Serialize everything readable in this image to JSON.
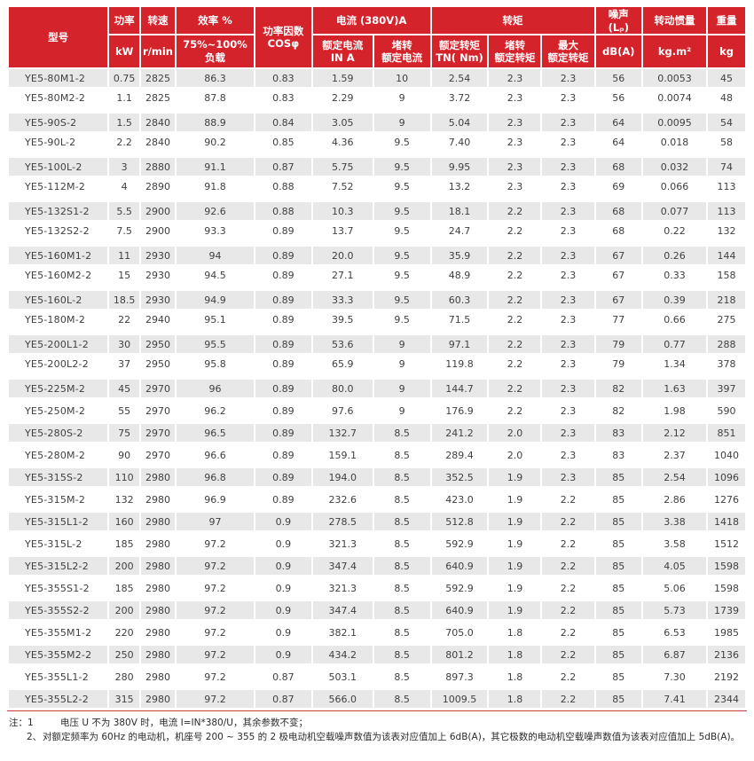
{
  "page": {
    "accent_red": "#d5232b",
    "row_gray": "#e8e8e8"
  },
  "table": {
    "header": {
      "model": "型号",
      "power_title": "功率",
      "power_unit": "kW",
      "speed_title": "转速",
      "speed_unit": "r/min",
      "eff_title": "效率 %",
      "eff_unit": "75%~100% 负载",
      "cos": "功率因数\nCOSφ",
      "current_group": "电流 (380V)A",
      "current_rated": "额定电流\nIN A",
      "current_locked": "堵转\n额定电流",
      "torque_group": "转矩",
      "torque_rated": "额定转矩\nTN( Nm)",
      "torque_locked": "堵转\n额定转矩",
      "torque_max": "最大\n额定转矩",
      "noise_title": "噪声 (Lₚ)",
      "noise_unit": "dB(A)",
      "inertia_title": "转动惯量",
      "inertia_unit": "kg.m²",
      "weight_title": "重量",
      "weight_unit": "kg"
    },
    "rows": [
      [
        "YE5-80M1-2",
        "0.75",
        "2825",
        "86.3",
        "0.83",
        "1.59",
        "10",
        "2.54",
        "2.3",
        "2.3",
        "56",
        "0.0053",
        "45"
      ],
      [
        "YE5-80M2-2",
        "1.1",
        "2825",
        "87.8",
        "0.83",
        "2.29",
        "9",
        "3.72",
        "2.3",
        "2.3",
        "56",
        "0.0074",
        "48"
      ],
      [
        "YE5-90S-2",
        "1.5",
        "2840",
        "88.9",
        "0.84",
        "3.05",
        "9",
        "5.04",
        "2.3",
        "2.3",
        "64",
        "0.0095",
        "54"
      ],
      [
        "YE5-90L-2",
        "2.2",
        "2840",
        "90.2",
        "0.85",
        "4.36",
        "9.5",
        "7.40",
        "2.3",
        "2.3",
        "64",
        "0.018",
        "58"
      ],
      [
        "YE5-100L-2",
        "3",
        "2880",
        "91.1",
        "0.87",
        "5.75",
        "9.5",
        "9.95",
        "2.3",
        "2.3",
        "68",
        "0.032",
        "74"
      ],
      [
        "YE5-112M-2",
        "4",
        "2890",
        "91.8",
        "0.88",
        "7.52",
        "9.5",
        "13.2",
        "2.3",
        "2.3",
        "69",
        "0.066",
        "113"
      ],
      [
        "YE5-132S1-2",
        "5.5",
        "2900",
        "92.6",
        "0.88",
        "10.3",
        "9.5",
        "18.1",
        "2.2",
        "2.3",
        "68",
        "0.077",
        "113"
      ],
      [
        "YE5-132S2-2",
        "7.5",
        "2900",
        "93.3",
        "0.89",
        "13.7",
        "9.5",
        "24.7",
        "2.2",
        "2.3",
        "68",
        "0.22",
        "132"
      ],
      [
        "YE5-160M1-2",
        "11",
        "2930",
        "94",
        "0.89",
        "20.0",
        "9.5",
        "35.9",
        "2.2",
        "2.3",
        "67",
        "0.26",
        "144"
      ],
      [
        "YE5-160M2-2",
        "15",
        "2930",
        "94.5",
        "0.89",
        "27.1",
        "9.5",
        "48.9",
        "2.2",
        "2.3",
        "67",
        "0.33",
        "158"
      ],
      [
        "YE5-160L-2",
        "18.5",
        "2930",
        "94.9",
        "0.89",
        "33.3",
        "9.5",
        "60.3",
        "2.2",
        "2.3",
        "67",
        "0.39",
        "218"
      ],
      [
        "YE5-180M-2",
        "22",
        "2940",
        "95.1",
        "0.89",
        "39.5",
        "9.5",
        "71.5",
        "2.2",
        "2.3",
        "77",
        "0.66",
        "275"
      ],
      [
        "YE5-200L1-2",
        "30",
        "2950",
        "95.5",
        "0.89",
        "53.6",
        "9",
        "97.1",
        "2.2",
        "2.3",
        "79",
        "0.77",
        "288"
      ],
      [
        "YE5-200L2-2",
        "37",
        "2950",
        "95.8",
        "0.89",
        "65.9",
        "9",
        "119.8",
        "2.2",
        "2.3",
        "79",
        "1.34",
        "378"
      ],
      [
        "YE5-225M-2",
        "45",
        "2970",
        "96",
        "0.89",
        "80.0",
        "9",
        "144.7",
        "2.2",
        "2.3",
        "82",
        "1.63",
        "397"
      ],
      [
        "YE5-250M-2",
        "55",
        "2970",
        "96.2",
        "0.89",
        "97.6",
        "9",
        "176.9",
        "2.2",
        "2.3",
        "82",
        "1.98",
        "590"
      ],
      [
        "YE5-280S-2",
        "75",
        "2970",
        "96.5",
        "0.89",
        "132.7",
        "8.5",
        "241.2",
        "2.0",
        "2.3",
        "83",
        "2.12",
        "851"
      ],
      [
        "YE5-280M-2",
        "90",
        "2970",
        "96.6",
        "0.89",
        "159.1",
        "8.5",
        "289.4",
        "2.0",
        "2.3",
        "83",
        "2.37",
        "1040"
      ],
      [
        "YE5-315S-2",
        "110",
        "2980",
        "96.8",
        "0.89",
        "194.0",
        "8.5",
        "352.5",
        "1.9",
        "2.3",
        "85",
        "2.54",
        "1096"
      ],
      [
        "YE5-315M-2",
        "132",
        "2980",
        "96.9",
        "0.89",
        "232.6",
        "8.5",
        "423.0",
        "1.9",
        "2.2",
        "85",
        "2.86",
        "1276"
      ],
      [
        "YE5-315L1-2",
        "160",
        "2980",
        "97",
        "0.9",
        "278.5",
        "8.5",
        "512.8",
        "1.9",
        "2.2",
        "85",
        "3.38",
        "1418"
      ],
      [
        "YE5-315L-2",
        "185",
        "2980",
        "97.2",
        "0.9",
        "321.3",
        "8.5",
        "592.9",
        "1.9",
        "2.2",
        "85",
        "3.58",
        "1512"
      ],
      [
        "YE5-315L2-2",
        "200",
        "2980",
        "97.2",
        "0.9",
        "347.4",
        "8.5",
        "640.9",
        "1.9",
        "2.2",
        "85",
        "4.05",
        "1598"
      ],
      [
        "YE5-355S1-2",
        "185",
        "2980",
        "97.2",
        "0.9",
        "321.3",
        "8.5",
        "592.9",
        "1.9",
        "2.2",
        "85",
        "5.06",
        "1598"
      ],
      [
        "YE5-355S2-2",
        "200",
        "2980",
        "97.2",
        "0.9",
        "347.4",
        "8.5",
        "640.9",
        "1.9",
        "2.2",
        "85",
        "5.73",
        "1739"
      ],
      [
        "YE5-355M1-2",
        "220",
        "2980",
        "97.2",
        "0.9",
        "382.1",
        "8.5",
        "705.0",
        "1.8",
        "2.2",
        "85",
        "6.53",
        "1985"
      ],
      [
        "YE5-355M2-2",
        "250",
        "2980",
        "97.2",
        "0.9",
        "434.2",
        "8.5",
        "801.2",
        "1.8",
        "2.2",
        "85",
        "6.87",
        "2136"
      ],
      [
        "YE5-355L1-2",
        "280",
        "2980",
        "97.2",
        "0.87",
        "503.1",
        "8.5",
        "897.3",
        "1.8",
        "2.2",
        "85",
        "7.30",
        "2192"
      ],
      [
        "YE5-355L2-2",
        "315",
        "2980",
        "97.2",
        "0.87",
        "566.0",
        "8.5",
        "1009.5",
        "1.8",
        "2.2",
        "85",
        "7.41",
        "2344"
      ]
    ],
    "row_gaps": {
      "large": [
        1,
        3,
        5,
        7,
        9,
        11,
        13
      ],
      "small": [
        14,
        15,
        16,
        17,
        18,
        19,
        20,
        21,
        22,
        23,
        24,
        25,
        26,
        27
      ]
    }
  },
  "notes": {
    "n1_label": "注：1",
    "n1": "电压 U 不为 380V 时，电流 I=IN*380/U，其余参数不变；",
    "n2_label": "2、",
    "n2": "对额定频率为 60Hz 的电动机，机座号 200 ~ 355 的 2 极电动机空载噪声数值为该表对应值加上 6dB(A)，其它极数的电动机空载噪声数值为该表对应值加上 5dB(A)。"
  }
}
